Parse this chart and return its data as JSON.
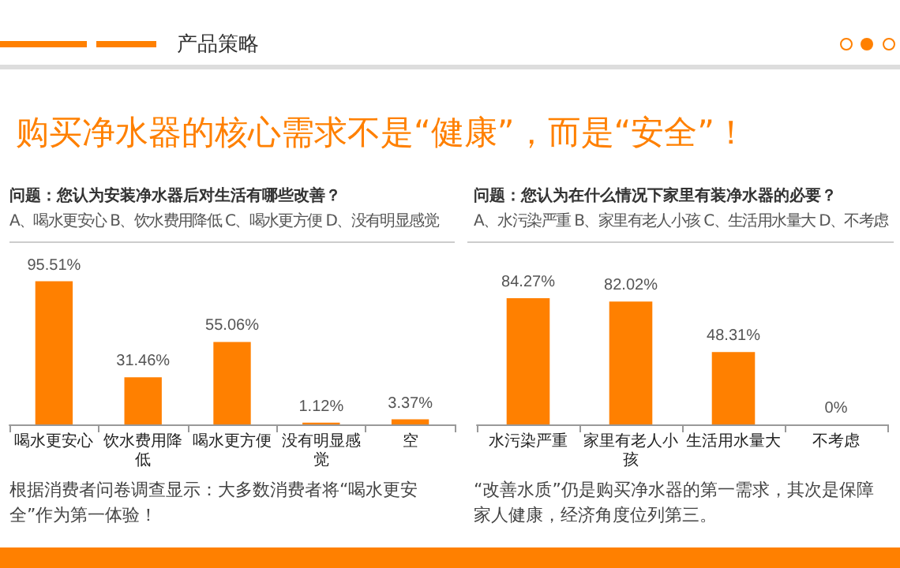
{
  "chart_data": [
    {
      "type": "other",
      "subtitle": "产品策略",
      "title": "购买净水器的核心需求不是“健康”，而是“安全”！"
    },
    {
      "type": "bar",
      "title": "问题：您认为安装净水器后对生活有哪些改善？",
      "subtitle": "A、喝水更安心  B、饮水费用降低 C、喝水更方便  D、没有明显感觉",
      "categories": [
        "喝水更安心",
        "饮水费用降低",
        "喝水更方便",
        "没有明显感觉",
        "空"
      ],
      "values": [
        95.51,
        31.46,
        55.06,
        1.12,
        3.37
      ],
      "value_labels": [
        "95.51%",
        "31.46%",
        "55.06%",
        "1.12%",
        "3.37%"
      ],
      "color": "#ff8000",
      "annotations": [
        "根据消费者问卷调查显示：大多数消费者将“喝水更安全”作为第一体验！"
      ]
    },
    {
      "type": "bar",
      "title": "问题：您认为在什么情况下家里有装净水器的必要？",
      "subtitle": "A、水污染严重  B、家里有老人小孩  C、生活用水量大  D、不考虑",
      "categories": [
        "水污染严重",
        "家里有老人小孩",
        "生活用水量大",
        "不考虑"
      ],
      "values": [
        84.27,
        82.02,
        48.31,
        0
      ],
      "value_labels": [
        "84.27%",
        "82.02%",
        "48.31%",
        "0%"
      ],
      "color": "#ff8000",
      "annotations": [
        "“改善水质”仍是购买净水器的第一需求，其次是保障家人健康，经济角度位列第三。"
      ]
    }
  ]
}
